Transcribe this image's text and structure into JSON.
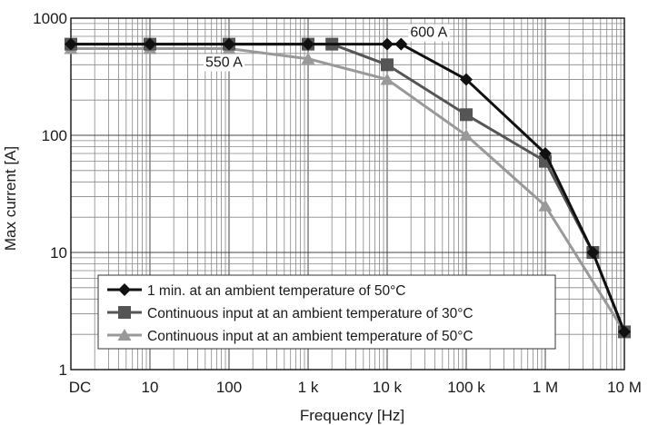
{
  "chart_data": {
    "type": "line",
    "xlabel": "Frequency [Hz]",
    "ylabel": "Max current [A]",
    "x_scale": "log",
    "y_scale": "log",
    "x_tick_labels": [
      "DC",
      "10",
      "100",
      "1 k",
      "10 k",
      "100 k",
      "1 M",
      "10 M"
    ],
    "y_tick_labels": [
      "1000",
      "100",
      "10",
      "1"
    ],
    "ylim": [
      1,
      1000
    ],
    "grid": true,
    "legend_position": "bottom-left",
    "annotations": [
      {
        "text": "600 A",
        "x": 15000,
        "y": 600
      },
      {
        "text": "550 A",
        "x": 100,
        "y": 550
      }
    ],
    "series": [
      {
        "name": "1 min. at an ambient temperature of 50°C",
        "color": "#111111",
        "marker": "diamond",
        "points": [
          {
            "x": "DC",
            "y": 600
          },
          {
            "x": 10,
            "y": 600
          },
          {
            "x": 100,
            "y": 600
          },
          {
            "x": 1000,
            "y": 600
          },
          {
            "x": 10000,
            "y": 600
          },
          {
            "x": 15000,
            "y": 600
          },
          {
            "x": 100000,
            "y": 300
          },
          {
            "x": 1000000,
            "y": 70
          },
          {
            "x": 4000000,
            "y": 10
          },
          {
            "x": 10000000,
            "y": 2.1
          }
        ]
      },
      {
        "name": "Continuous input at an ambient temperature of 30°C",
        "color": "#555555",
        "marker": "square",
        "points": [
          {
            "x": "DC",
            "y": 600
          },
          {
            "x": 10,
            "y": 600
          },
          {
            "x": 100,
            "y": 600
          },
          {
            "x": 1000,
            "y": 600
          },
          {
            "x": 2000,
            "y": 600
          },
          {
            "x": 10000,
            "y": 400
          },
          {
            "x": 100000,
            "y": 150
          },
          {
            "x": 1000000,
            "y": 60
          },
          {
            "x": 4000000,
            "y": 10
          },
          {
            "x": 10000000,
            "y": 2.1
          }
        ]
      },
      {
        "name": "Continuous input at an ambient temperature of 50°C",
        "color": "#999999",
        "marker": "triangle",
        "points": [
          {
            "x": "DC",
            "y": 550
          },
          {
            "x": 10,
            "y": 550
          },
          {
            "x": 100,
            "y": 550
          },
          {
            "x": 1000,
            "y": 450
          },
          {
            "x": 10000,
            "y": 300
          },
          {
            "x": 100000,
            "y": 100
          },
          {
            "x": 1000000,
            "y": 25
          },
          {
            "x": 10000000,
            "y": 2.1
          }
        ]
      }
    ]
  }
}
